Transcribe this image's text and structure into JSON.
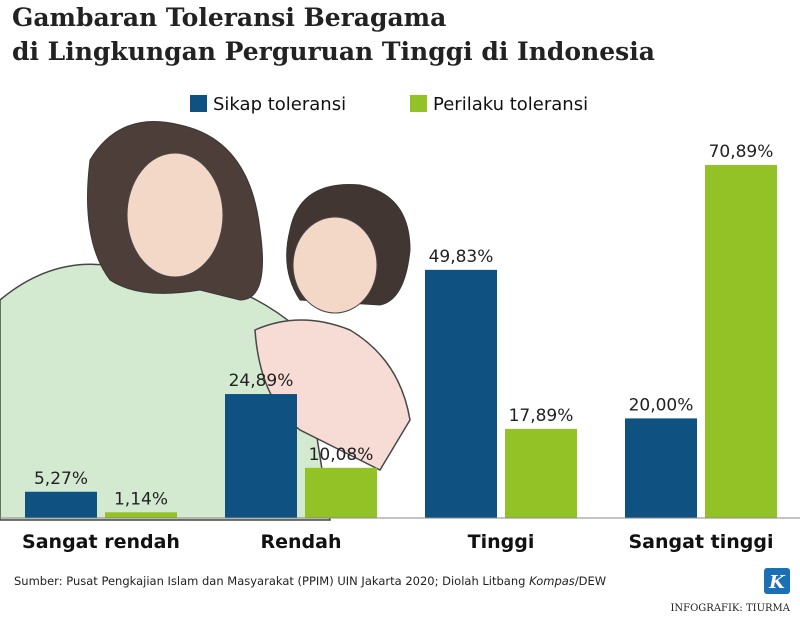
{
  "chart_data": {
    "type": "bar",
    "title": [
      "Gambaran Toleransi Beragama",
      "di Lingkungan Perguruan Tinggi di Indonesia"
    ],
    "categories": [
      "Sangat rendah",
      "Rendah",
      "Tinggi",
      "Sangat tinggi"
    ],
    "series": [
      {
        "name": "Sikap toleransi",
        "color": "#0f5282",
        "values": [
          5.27,
          24.89,
          49.83,
          20.0
        ],
        "value_labels": [
          "5,27%",
          "24,89%",
          "49,83%",
          "20,00%"
        ]
      },
      {
        "name": "Perilaku toleransi",
        "color": "#93c226",
        "values": [
          1.14,
          10.08,
          17.89,
          70.89
        ],
        "value_labels": [
          "1,14%",
          "10,08%",
          "17,89%",
          "70,89%"
        ]
      }
    ],
    "source": {
      "prefix": "Sumber: Pusat Pengkajian Islam dan Masyarakat (PPIM) UIN Jakarta 2020; Diolah Litbang ",
      "italic": "Kompas",
      "suffix": "/DEW"
    },
    "logo": "K",
    "credit": "INFOGRAFIK: TIURMA"
  }
}
